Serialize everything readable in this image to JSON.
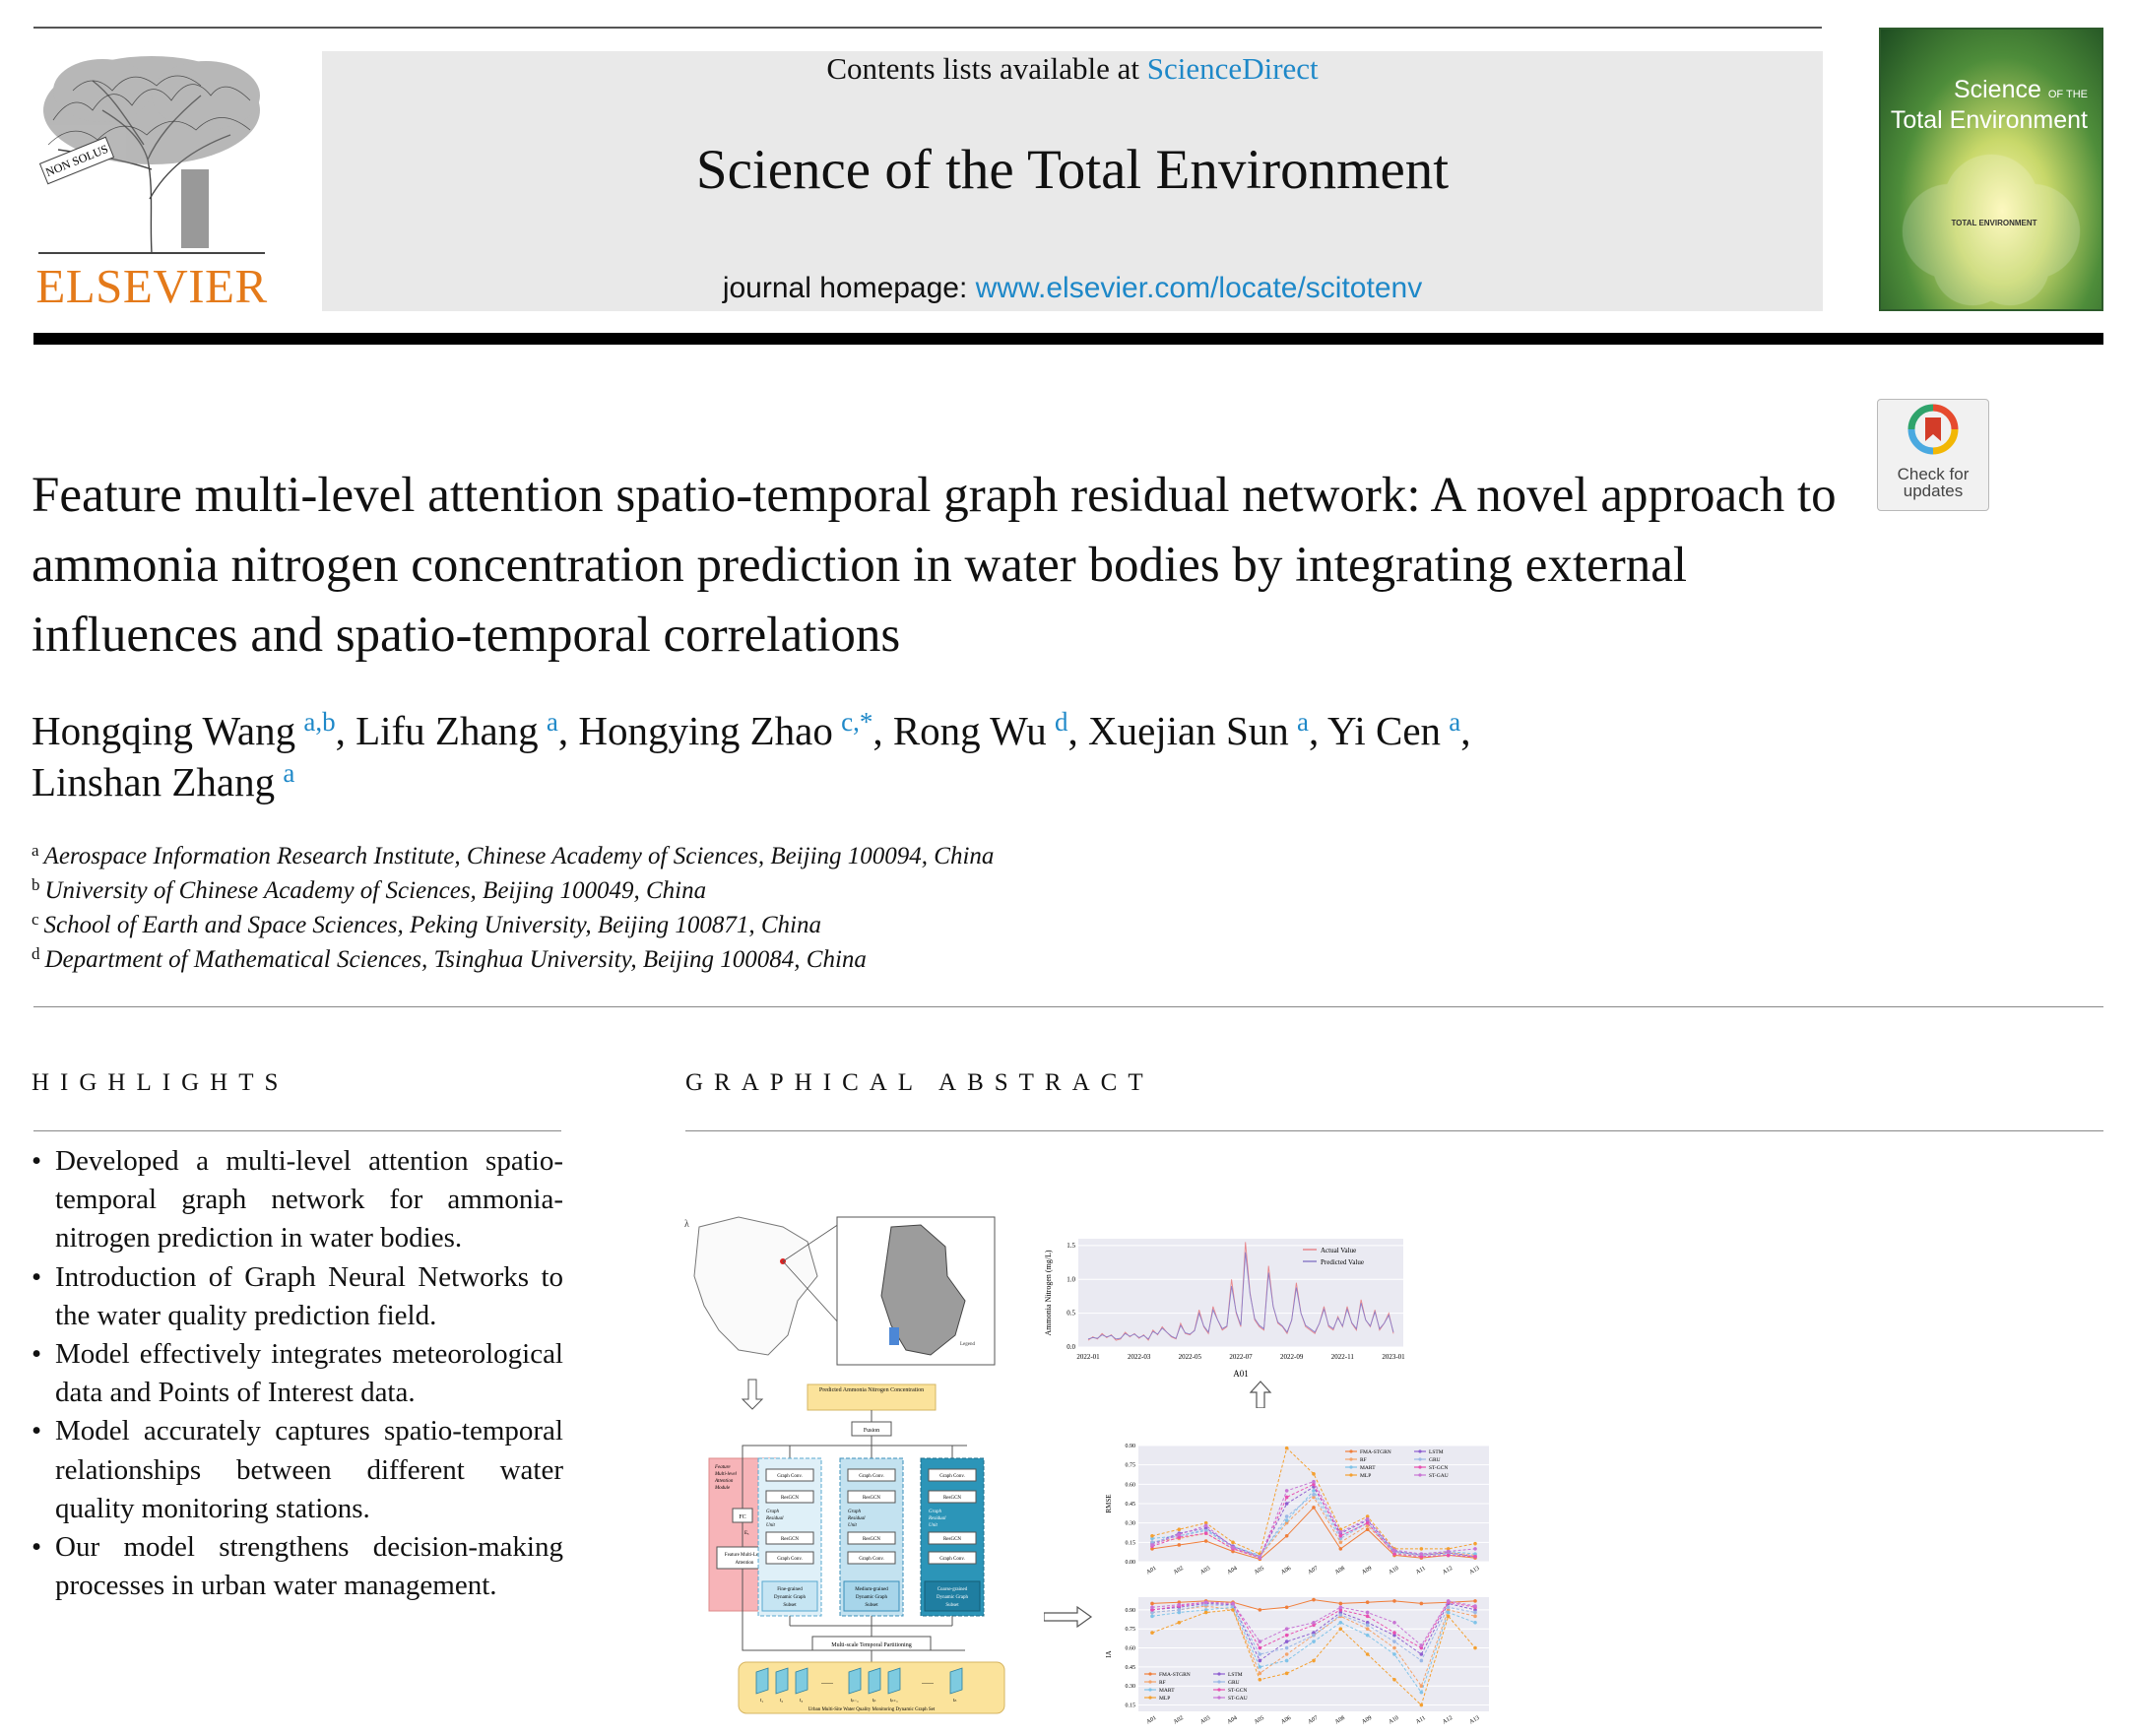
{
  "header": {
    "contents_prefix": "Contents lists available at ",
    "contents_link": "ScienceDirect",
    "journal_title": "Science of the Total Environment",
    "homepage_prefix": "journal homepage: ",
    "homepage_link": "www.elsevier.com/locate/scitotenv",
    "publisher_wordmark": "ELSEVIER",
    "publisher_tree_motto": "NON SOLUS",
    "cover_title_line1": "Science",
    "cover_title_of": "OF THE",
    "cover_title_line2": "Total Environment",
    "cover_center_label": "TOTAL ENVIRONMENT",
    "check_updates_label": [
      "Check for",
      "updates"
    ]
  },
  "article": {
    "title": "Feature multi-level attention spatio-temporal graph residual network: A novel approach to ammonia nitrogen concentration prediction in water bodies by integrating external influences and spatio-temporal correlations",
    "authors": [
      {
        "name": "Hongqing Wang",
        "aff": "a,b"
      },
      {
        "name": "Lifu Zhang",
        "aff": "a"
      },
      {
        "name": "Hongying Zhao",
        "aff": "c,*"
      },
      {
        "name": "Rong Wu",
        "aff": "d"
      },
      {
        "name": "Xuejian Sun",
        "aff": "a"
      },
      {
        "name": "Yi Cen",
        "aff": "a"
      },
      {
        "name": "Linshan Zhang",
        "aff": "a"
      }
    ],
    "affiliations": [
      {
        "key": "a",
        "text": "Aerospace Information Research Institute, Chinese Academy of Sciences, Beijing 100094, China"
      },
      {
        "key": "b",
        "text": "University of Chinese Academy of Sciences, Beijing 100049, China"
      },
      {
        "key": "c",
        "text": "School of Earth and Space Sciences, Peking University, Beijing 100871, China"
      },
      {
        "key": "d",
        "text": "Department of Mathematical Sciences, Tsinghua University, Beijing 100084, China"
      }
    ]
  },
  "highlights": {
    "heading": "HIGHLIGHTS",
    "items": [
      "Developed a multi-level attention spatio-temporal graph network for ammonia-nitrogen prediction in water bodies.",
      "Introduction of Graph Neural Networks to the water quality prediction field.",
      "Model effectively integrates meteorological data and Points of Interest data.",
      "Model accurately captures spatio-temporal relationships between different water quality monitoring stations.",
      "Our model strengthens decision-making processes in urban water management."
    ]
  },
  "graphical_abstract": {
    "heading": "GRAPHICAL ABSTRACT",
    "diagram": {
      "output_box": "Predicted Ammonia Nitrogen Concentration",
      "fusion_box": "Fusion",
      "attention_module": [
        "Feature",
        "Multi-level",
        "Attention",
        "Module"
      ],
      "fc_box": "FC",
      "ex_label": "Eₓ",
      "attention_box": [
        "Feature Multi-Level",
        "Attention"
      ],
      "branch_labels": [
        [
          "Fine-grained",
          "Dynamic Graph",
          "Subset"
        ],
        [
          "Medium-grained",
          "Dynamic Graph",
          "Subset"
        ],
        [
          "Coarse-grained",
          "Dynamic Graph",
          "Subset"
        ]
      ],
      "graph_conv_label": "Graph Conv.",
      "resgcn_label": "ResGCN",
      "residual_unit_label": [
        "Graph",
        "Residual",
        "Unit"
      ],
      "partition_box": "Multi-scale Temporal Partitioning",
      "graph_set_label": "Urban Multi-Site Water Quality Monitoring Dynamic Graph Set",
      "time_labels": [
        "t₁",
        "t₂",
        "t₃",
        "tₚ₋₁",
        "tₚ",
        "tₚ₊₁",
        "tₙ"
      ],
      "ellipsis": "......",
      "map_legend": "Legend"
    },
    "charts": [
      {
        "type": "line",
        "ylabel": "Ammonia Nitrogen (mg/L)",
        "xlabel": "A01",
        "x_ticks": [
          "2022-01",
          "2022-03",
          "2022-05",
          "2022-07",
          "2022-09",
          "2022-11",
          "2023-01"
        ],
        "y_ticks": [
          "0.0",
          "0.5",
          "1.0",
          "1.5"
        ],
        "ylim": [
          0,
          1.6
        ],
        "legend": [
          "Actual Value",
          "Predicted Value"
        ],
        "colors": [
          "#e8878c",
          "#8c7fc9"
        ],
        "series": [
          {
            "name": "Actual Value",
            "values": [
              0.1,
              0.15,
              0.12,
              0.2,
              0.14,
              0.18,
              0.1,
              0.12,
              0.22,
              0.15,
              0.2,
              0.13,
              0.18,
              0.1,
              0.25,
              0.18,
              0.3,
              0.22,
              0.15,
              0.12,
              0.35,
              0.2,
              0.18,
              0.25,
              0.55,
              0.3,
              0.2,
              0.6,
              0.4,
              0.25,
              0.3,
              1.0,
              0.5,
              0.3,
              1.55,
              0.8,
              0.4,
              0.3,
              0.25,
              1.2,
              0.6,
              0.35,
              0.3,
              0.2,
              0.4,
              0.95,
              0.5,
              0.3,
              0.25,
              0.2,
              0.35,
              0.6,
              0.3,
              0.25,
              0.45,
              0.3,
              0.6,
              0.35,
              0.25,
              0.7,
              0.4,
              0.3,
              0.55,
              0.25,
              0.35,
              0.5,
              0.2
            ]
          },
          {
            "name": "Predicted Value",
            "values": [
              0.12,
              0.14,
              0.13,
              0.18,
              0.15,
              0.17,
              0.12,
              0.13,
              0.2,
              0.16,
              0.19,
              0.14,
              0.17,
              0.12,
              0.23,
              0.19,
              0.28,
              0.22,
              0.16,
              0.13,
              0.32,
              0.21,
              0.19,
              0.24,
              0.5,
              0.31,
              0.22,
              0.55,
              0.4,
              0.27,
              0.31,
              0.9,
              0.52,
              0.32,
              1.4,
              0.78,
              0.42,
              0.32,
              0.27,
              1.1,
              0.6,
              0.37,
              0.31,
              0.22,
              0.4,
              0.88,
              0.5,
              0.32,
              0.27,
              0.22,
              0.35,
              0.56,
              0.32,
              0.27,
              0.43,
              0.31,
              0.56,
              0.36,
              0.27,
              0.65,
              0.4,
              0.31,
              0.52,
              0.27,
              0.35,
              0.47,
              0.22
            ]
          }
        ]
      },
      {
        "type": "line",
        "ylabel": "RMSE",
        "categories": [
          "A01",
          "A02",
          "A03",
          "A04",
          "A05",
          "A06",
          "A07",
          "A08",
          "A09",
          "A10",
          "A11",
          "A12",
          "A13"
        ],
        "y_ticks": [
          "0.00",
          "0.15",
          "0.30",
          "0.45",
          "0.60",
          "0.75",
          "0.90"
        ],
        "ylim": [
          0,
          0.9
        ],
        "legend": [
          "FMA-STGRN",
          "RF",
          "MART",
          "MLP",
          "LSTM",
          "GRU",
          "ST-GCN",
          "ST-GAU"
        ],
        "colors": [
          "#f07e3a",
          "#f4a36a",
          "#7fc3e8",
          "#f4a030",
          "#8e5fd0",
          "#9bb8e6",
          "#e850b0",
          "#c874d4"
        ],
        "series": [
          {
            "name": "FMA-STGRN",
            "values": [
              0.1,
              0.13,
              0.16,
              0.08,
              0.02,
              0.2,
              0.42,
              0.1,
              0.25,
              0.05,
              0.03,
              0.05,
              0.03
            ]
          },
          {
            "name": "RF",
            "values": [
              0.15,
              0.18,
              0.22,
              0.1,
              0.04,
              0.3,
              0.5,
              0.15,
              0.28,
              0.07,
              0.05,
              0.07,
              0.05
            ]
          },
          {
            "name": "MART",
            "values": [
              0.18,
              0.2,
              0.25,
              0.12,
              0.05,
              0.32,
              0.55,
              0.2,
              0.3,
              0.08,
              0.06,
              0.08,
              0.06
            ]
          },
          {
            "name": "MLP",
            "values": [
              0.2,
              0.25,
              0.3,
              0.15,
              0.06,
              0.88,
              0.68,
              0.25,
              0.35,
              0.1,
              0.1,
              0.1,
              0.14
            ]
          },
          {
            "name": "LSTM",
            "values": [
              0.14,
              0.22,
              0.26,
              0.12,
              0.04,
              0.45,
              0.58,
              0.22,
              0.32,
              0.08,
              0.05,
              0.07,
              0.04
            ]
          },
          {
            "name": "GRU",
            "values": [
              0.15,
              0.2,
              0.24,
              0.11,
              0.04,
              0.35,
              0.52,
              0.18,
              0.3,
              0.07,
              0.05,
              0.06,
              0.04
            ]
          },
          {
            "name": "ST-GCN",
            "values": [
              0.12,
              0.19,
              0.22,
              0.1,
              0.03,
              0.5,
              0.6,
              0.2,
              0.3,
              0.06,
              0.04,
              0.05,
              0.04
            ]
          },
          {
            "name": "ST-GAU",
            "values": [
              0.13,
              0.21,
              0.28,
              0.11,
              0.03,
              0.55,
              0.62,
              0.23,
              0.33,
              0.09,
              0.06,
              0.08,
              0.1
            ]
          }
        ]
      },
      {
        "type": "line",
        "ylabel": "IA",
        "categories": [
          "A01",
          "A02",
          "A03",
          "A04",
          "A05",
          "A06",
          "A07",
          "A08",
          "A09",
          "A10",
          "A11",
          "A12",
          "A13"
        ],
        "y_ticks": [
          "0.15",
          "0.30",
          "0.45",
          "0.60",
          "0.75",
          "0.90"
        ],
        "ylim": [
          0.1,
          1.0
        ],
        "legend": [
          "FMA-STGRN",
          "RF",
          "MART",
          "MLP",
          "LSTM",
          "GRU",
          "ST-GCN",
          "ST-GAU"
        ],
        "colors": [
          "#f07e3a",
          "#f4a36a",
          "#7fc3e8",
          "#f4a030",
          "#8e5fd0",
          "#9bb8e6",
          "#e850b0",
          "#c874d4"
        ],
        "series": [
          {
            "name": "FMA-STGRN",
            "values": [
              0.95,
              0.96,
              0.97,
              0.96,
              0.9,
              0.92,
              0.98,
              0.95,
              0.96,
              0.97,
              0.95,
              0.96,
              0.97
            ]
          },
          {
            "name": "RF",
            "values": [
              0.88,
              0.9,
              0.93,
              0.9,
              0.4,
              0.55,
              0.7,
              0.85,
              0.75,
              0.6,
              0.3,
              0.9,
              0.85
            ]
          },
          {
            "name": "MART",
            "values": [
              0.85,
              0.88,
              0.9,
              0.92,
              0.45,
              0.5,
              0.65,
              0.8,
              0.7,
              0.55,
              0.25,
              0.88,
              0.8
            ]
          },
          {
            "name": "MLP",
            "values": [
              0.72,
              0.8,
              0.88,
              0.9,
              0.35,
              0.4,
              0.5,
              0.75,
              0.55,
              0.35,
              0.15,
              0.85,
              0.6
            ]
          },
          {
            "name": "LSTM",
            "values": [
              0.9,
              0.92,
              0.95,
              0.94,
              0.5,
              0.65,
              0.72,
              0.88,
              0.8,
              0.7,
              0.55,
              0.95,
              0.9
            ]
          },
          {
            "name": "GRU",
            "values": [
              0.88,
              0.9,
              0.94,
              0.93,
              0.55,
              0.6,
              0.7,
              0.86,
              0.78,
              0.65,
              0.5,
              0.92,
              0.88
            ]
          },
          {
            "name": "ST-GCN",
            "values": [
              0.9,
              0.93,
              0.96,
              0.95,
              0.6,
              0.7,
              0.78,
              0.9,
              0.85,
              0.72,
              0.6,
              0.96,
              0.92
            ]
          },
          {
            "name": "ST-GAU",
            "values": [
              0.92,
              0.94,
              0.96,
              0.95,
              0.65,
              0.75,
              0.8,
              0.92,
              0.88,
              0.8,
              0.62,
              0.97,
              0.93
            ]
          }
        ]
      }
    ]
  }
}
